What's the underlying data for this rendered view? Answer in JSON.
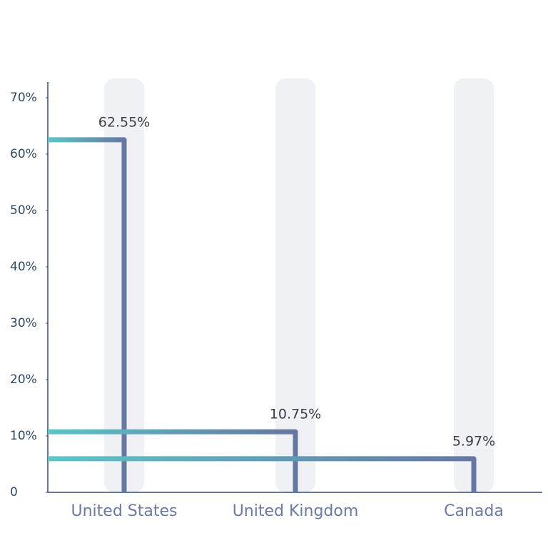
{
  "chart_data": {
    "type": "bar",
    "categories": [
      "United States",
      "United Kingdom",
      "Canada"
    ],
    "values": [
      62.55,
      10.75,
      5.97
    ],
    "value_labels": [
      "62.55%",
      "10.75%",
      "5.97%"
    ],
    "color": "#6577a3",
    "ylim": [
      0,
      70
    ],
    "yticks": [
      0,
      {
        "value": 10,
        "label": "10%"
      },
      {
        "value": 20,
        "label": "20%"
      },
      {
        "value": 30,
        "label": "30%"
      },
      {
        "value": 40,
        "label": "40%"
      },
      {
        "value": 50,
        "label": "50%"
      },
      {
        "value": 60,
        "label": "60%"
      },
      {
        "value": 70,
        "label": "70%"
      }
    ]
  }
}
